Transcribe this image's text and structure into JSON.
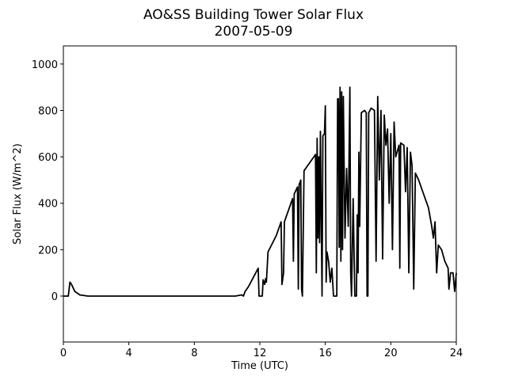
{
  "chart_data": {
    "type": "line",
    "title": "AO&SS Building Tower Solar Flux",
    "subtitle": "2007-05-09",
    "x_label": "Time (UTC)",
    "y_label": "Solar Flux (W/m^2)",
    "color": "#000000",
    "xlim": [
      0,
      24
    ],
    "ylim": [
      -198,
      1078
    ],
    "xticks": [
      0,
      4,
      8,
      12,
      16,
      20,
      24
    ],
    "yticks": [
      0,
      200,
      400,
      600,
      800,
      1000
    ],
    "x": [
      0,
      0.3,
      0.4,
      0.5,
      0.7,
      1.0,
      1.5,
      10.5,
      10.9,
      11.0,
      11.1,
      11.3,
      11.6,
      11.9,
      11.95,
      12.15,
      12.2,
      12.3,
      12.35,
      12.4,
      12.5,
      13.0,
      13.2,
      13.3,
      13.35,
      13.45,
      13.5,
      13.9,
      14.0,
      14.05,
      14.1,
      14.3,
      14.35,
      14.4,
      14.5,
      14.55,
      14.6,
      14.7,
      15.0,
      15.3,
      15.4,
      15.45,
      15.5,
      15.55,
      15.6,
      15.65,
      15.7,
      15.8,
      15.85,
      15.95,
      16.0,
      16.05,
      16.1,
      16.2,
      16.3,
      16.4,
      16.5,
      16.7,
      16.75,
      16.8,
      16.85,
      16.9,
      16.95,
      17.0,
      17.05,
      17.1,
      17.2,
      17.3,
      17.4,
      17.5,
      17.55,
      17.6,
      17.7,
      17.8,
      17.9,
      17.95,
      18.0,
      18.05,
      18.1,
      18.2,
      18.4,
      18.5,
      18.55,
      18.6,
      18.65,
      18.8,
      19.0,
      19.1,
      19.2,
      19.3,
      19.4,
      19.5,
      19.6,
      19.7,
      19.8,
      19.9,
      20.0,
      20.1,
      20.2,
      20.3,
      20.5,
      20.55,
      20.6,
      20.8,
      20.9,
      21.0,
      21.1,
      21.2,
      21.3,
      21.4,
      21.5,
      21.7,
      22.0,
      22.3,
      22.5,
      22.6,
      22.7,
      22.8,
      22.9,
      23.1,
      23.3,
      23.5,
      23.55,
      23.65,
      23.8,
      23.9,
      24.0
    ],
    "values": [
      0,
      0,
      60,
      50,
      20,
      5,
      0,
      0,
      5,
      0,
      20,
      40,
      80,
      120,
      0,
      0,
      70,
      50,
      75,
      60,
      190,
      260,
      300,
      320,
      50,
      100,
      320,
      400,
      420,
      150,
      440,
      470,
      30,
      480,
      500,
      30,
      0,
      540,
      570,
      600,
      610,
      100,
      680,
      250,
      600,
      230,
      710,
      0,
      690,
      700,
      820,
      60,
      190,
      150,
      60,
      120,
      0,
      0,
      850,
      850,
      210,
      900,
      150,
      880,
      200,
      860,
      250,
      550,
      300,
      900,
      100,
      0,
      420,
      0,
      0,
      350,
      100,
      620,
      300,
      790,
      800,
      790,
      0,
      0,
      790,
      810,
      800,
      150,
      860,
      500,
      800,
      160,
      780,
      650,
      720,
      400,
      700,
      200,
      750,
      600,
      650,
      120,
      660,
      650,
      450,
      640,
      100,
      620,
      560,
      30,
      530,
      500,
      440,
      380,
      300,
      250,
      320,
      100,
      220,
      200,
      150,
      120,
      30,
      100,
      100,
      20,
      100
    ]
  }
}
